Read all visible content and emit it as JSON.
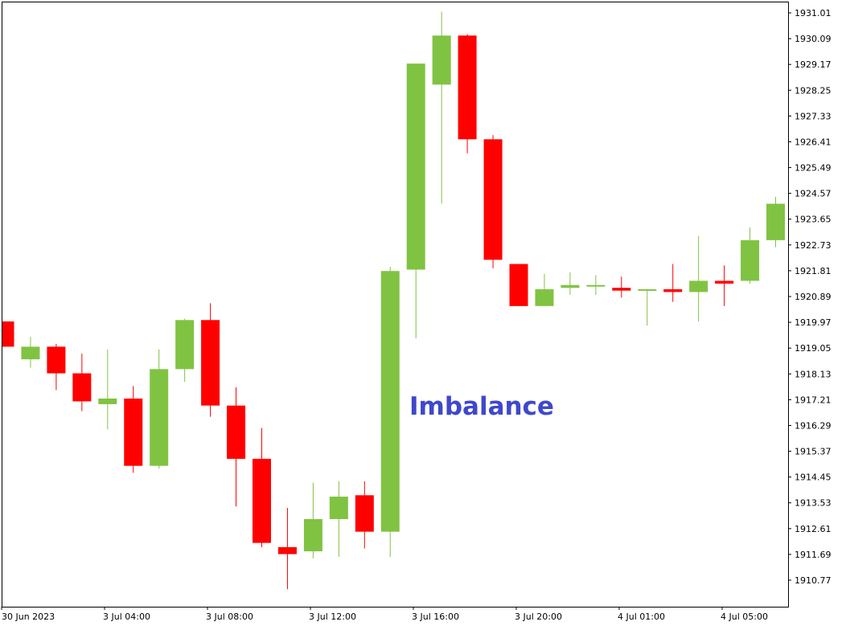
{
  "chart_data": {
    "type": "candlestick",
    "annotation": {
      "text": "Imbalance"
    },
    "colors": {
      "up": "#80c342",
      "down": "#ff0000",
      "annotation": "#3f48cc",
      "axis": "#000000"
    },
    "y_ticks": [
      "1931.01",
      "1930.09",
      "1929.17",
      "1928.25",
      "1927.33",
      "1926.41",
      "1925.49",
      "1924.57",
      "1923.65",
      "1922.73",
      "1921.81",
      "1920.89",
      "1919.97",
      "1919.05",
      "1918.13",
      "1917.21",
      "1916.29",
      "1915.37",
      "1914.45",
      "1913.53",
      "1912.61",
      "1911.69",
      "1910.77"
    ],
    "x_ticks": [
      "30 Jun 2023",
      "3 Jul 04:00",
      "3 Jul 08:00",
      "3 Jul 12:00",
      "3 Jul 16:00",
      "3 Jul 20:00",
      "4 Jul 01:00",
      "4 Jul 05:00"
    ],
    "candles": [
      {
        "o": 1920.0,
        "h": 1920.0,
        "l": 1919.1,
        "c": 1919.1
      },
      {
        "o": 1918.65,
        "h": 1919.45,
        "l": 1918.35,
        "c": 1919.1
      },
      {
        "o": 1919.1,
        "h": 1919.2,
        "l": 1917.55,
        "c": 1918.15
      },
      {
        "o": 1918.15,
        "h": 1918.85,
        "l": 1916.8,
        "c": 1917.15
      },
      {
        "o": 1917.05,
        "h": 1919.0,
        "l": 1916.15,
        "c": 1917.25
      },
      {
        "o": 1917.25,
        "h": 1917.7,
        "l": 1914.6,
        "c": 1914.85
      },
      {
        "o": 1914.85,
        "h": 1919.0,
        "l": 1914.75,
        "c": 1918.3
      },
      {
        "o": 1918.3,
        "h": 1920.1,
        "l": 1917.85,
        "c": 1920.05
      },
      {
        "o": 1920.05,
        "h": 1920.65,
        "l": 1916.6,
        "c": 1917.0
      },
      {
        "o": 1917.0,
        "h": 1917.65,
        "l": 1913.4,
        "c": 1915.1
      },
      {
        "o": 1915.1,
        "h": 1916.2,
        "l": 1911.95,
        "c": 1912.1
      },
      {
        "o": 1911.95,
        "h": 1913.35,
        "l": 1910.45,
        "c": 1911.7
      },
      {
        "o": 1911.8,
        "h": 1914.25,
        "l": 1911.55,
        "c": 1912.95
      },
      {
        "o": 1912.95,
        "h": 1914.3,
        "l": 1911.6,
        "c": 1913.75
      },
      {
        "o": 1913.8,
        "h": 1914.3,
        "l": 1911.9,
        "c": 1912.5
      },
      {
        "o": 1912.5,
        "h": 1921.95,
        "l": 1911.6,
        "c": 1921.8
      },
      {
        "o": 1921.85,
        "h": 1929.2,
        "l": 1919.4,
        "c": 1929.2
      },
      {
        "o": 1928.45,
        "h": 1931.05,
        "l": 1924.2,
        "c": 1930.2
      },
      {
        "o": 1930.2,
        "h": 1930.25,
        "l": 1926.0,
        "c": 1926.5
      },
      {
        "o": 1926.5,
        "h": 1926.65,
        "l": 1921.9,
        "c": 1922.2
      },
      {
        "o": 1922.05,
        "h": 1922.05,
        "l": 1920.55,
        "c": 1920.55
      },
      {
        "o": 1920.55,
        "h": 1921.7,
        "l": 1920.55,
        "c": 1921.15
      },
      {
        "o": 1921.2,
        "h": 1921.75,
        "l": 1920.95,
        "c": 1921.3
      },
      {
        "o": 1921.3,
        "h": 1921.65,
        "l": 1920.95,
        "c": 1921.3
      },
      {
        "o": 1921.2,
        "h": 1921.6,
        "l": 1920.85,
        "c": 1921.1
      },
      {
        "o": 1921.15,
        "h": 1921.15,
        "l": 1919.85,
        "c": 1921.15
      },
      {
        "o": 1921.15,
        "h": 1922.05,
        "l": 1920.7,
        "c": 1921.05
      },
      {
        "o": 1921.05,
        "h": 1923.05,
        "l": 1920.0,
        "c": 1921.45
      },
      {
        "o": 1921.45,
        "h": 1922.0,
        "l": 1920.55,
        "c": 1921.35
      },
      {
        "o": 1921.45,
        "h": 1923.35,
        "l": 1921.35,
        "c": 1922.9
      },
      {
        "o": 1922.9,
        "h": 1924.45,
        "l": 1922.65,
        "c": 1924.2
      }
    ]
  }
}
